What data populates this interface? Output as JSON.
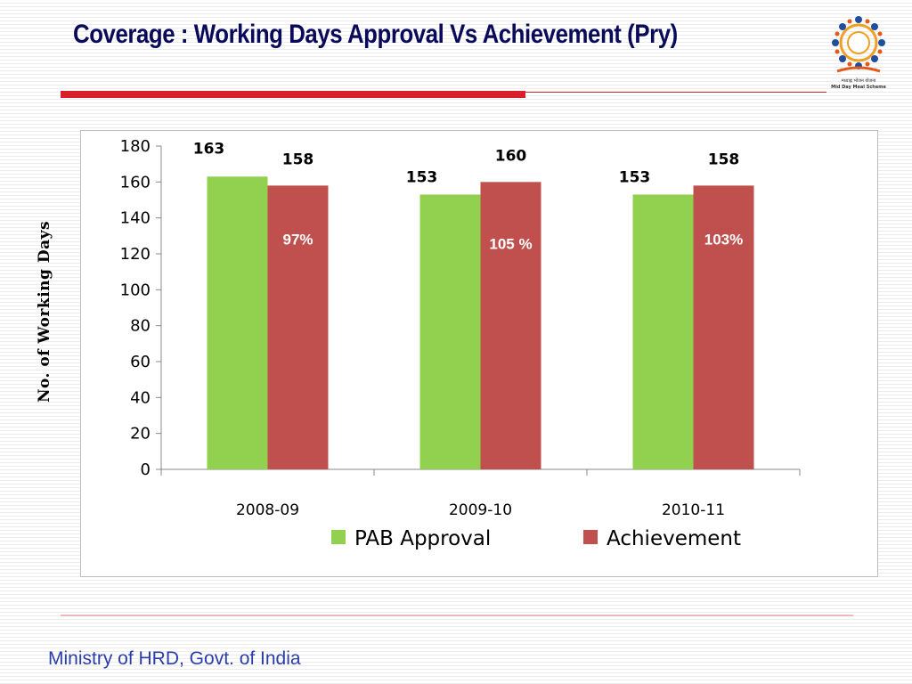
{
  "slide": {
    "title": "Coverage : Working Days Approval Vs Achievement (Pry)",
    "footer": "Ministry of HRD, Govt. of India",
    "logo_text_hindi": "मध्याह्न भोजन योजना",
    "logo_text_english": "Mid Day Meal Scheme"
  },
  "colors": {
    "title": "#0a0a5a",
    "accent_red": "#d9202a",
    "footer": "#2b3ea8"
  },
  "chart_data": {
    "type": "bar",
    "title": "",
    "ylabel": "No. of Working Days",
    "xlabel": "",
    "ylim": [
      0,
      180
    ],
    "yticks": [
      0,
      20,
      40,
      60,
      80,
      100,
      120,
      140,
      160,
      180
    ],
    "categories": [
      "2008-09",
      "2009-10",
      "2010-11"
    ],
    "series": [
      {
        "name": "PAB Approval",
        "color": "#92d050",
        "values": [
          163,
          153,
          153
        ]
      },
      {
        "name": "Achievement",
        "color": "#c0504d",
        "values": [
          158,
          160,
          158
        ]
      }
    ],
    "annotations": [
      "97%",
      "105 %",
      "103%"
    ],
    "legend_position": "bottom",
    "grid": false
  }
}
